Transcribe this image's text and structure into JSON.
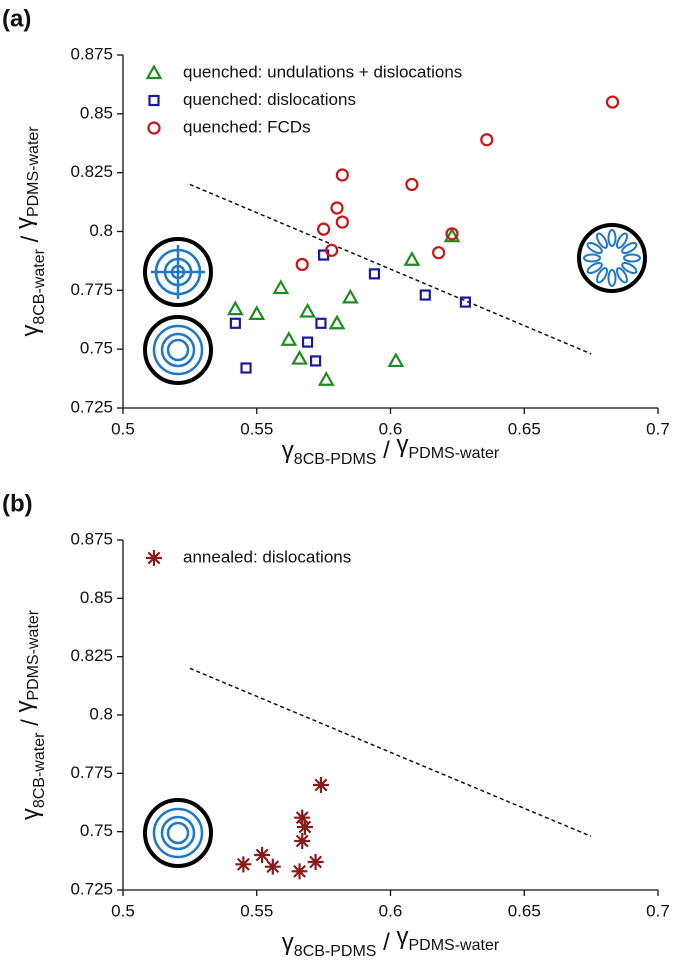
{
  "chart_data": [
    {
      "type": "scatter",
      "panel_label": "(a)",
      "xlabel": [
        "γ",
        "8CB-PDMS",
        " / ",
        "γ",
        "PDMS-water"
      ],
      "ylabel": [
        "γ",
        "8CB-water",
        " / ",
        "γ",
        "PDMS-water"
      ],
      "xlim": [
        0.5,
        0.7
      ],
      "xticks": [
        0.5,
        0.55,
        0.6,
        0.65,
        0.7
      ],
      "ylim": [
        0.725,
        0.875
      ],
      "yticks": [
        0.725,
        0.75,
        0.775,
        0.8,
        0.825,
        0.85,
        0.875
      ],
      "series": [
        {
          "name": "quenched: undulations + dislocations",
          "color": "#1f8c1f",
          "marker": "triangle",
          "x": [
            0.542,
            0.55,
            0.559,
            0.562,
            0.566,
            0.569,
            0.576,
            0.58,
            0.585,
            0.602,
            0.608,
            0.623
          ],
          "values": [
            0.767,
            0.765,
            0.776,
            0.754,
            0.746,
            0.766,
            0.737,
            0.761,
            0.772,
            0.745,
            0.788,
            0.798
          ]
        },
        {
          "name": "quenched: dislocations",
          "color": "#1a1aa0",
          "marker": "square",
          "x": [
            0.542,
            0.546,
            0.569,
            0.572,
            0.574,
            0.575,
            0.594,
            0.613,
            0.628
          ],
          "values": [
            0.761,
            0.742,
            0.753,
            0.745,
            0.761,
            0.79,
            0.782,
            0.773,
            0.77
          ]
        },
        {
          "name": "quenched: FCDs",
          "color": "#cc1414",
          "marker": "circle",
          "x": [
            0.567,
            0.575,
            0.578,
            0.58,
            0.582,
            0.582,
            0.608,
            0.618,
            0.623,
            0.636,
            0.683
          ],
          "values": [
            0.786,
            0.801,
            0.792,
            0.81,
            0.804,
            0.824,
            0.82,
            0.791,
            0.799,
            0.839,
            0.855
          ]
        }
      ],
      "reference_line": {
        "x": [
          0.525,
          0.675
        ],
        "y": [
          0.82,
          0.748
        ]
      }
    },
    {
      "type": "scatter",
      "panel_label": "(b)",
      "xlabel": [
        "γ",
        "8CB-PDMS",
        " / ",
        "γ",
        "PDMS-water"
      ],
      "ylabel": [
        "γ",
        "8CB-water",
        " / ",
        "γ",
        "PDMS-water"
      ],
      "xlim": [
        0.5,
        0.7
      ],
      "xticks": [
        0.5,
        0.55,
        0.6,
        0.65,
        0.7
      ],
      "ylim": [
        0.725,
        0.875
      ],
      "yticks": [
        0.725,
        0.75,
        0.775,
        0.8,
        0.825,
        0.85,
        0.875
      ],
      "series": [
        {
          "name": "annealed: dislocations",
          "color": "#8b1a1a",
          "marker": "asterisk",
          "x": [
            0.545,
            0.552,
            0.556,
            0.566,
            0.567,
            0.568,
            0.567,
            0.572,
            0.574
          ],
          "values": [
            0.736,
            0.74,
            0.735,
            0.733,
            0.756,
            0.752,
            0.746,
            0.737,
            0.77
          ]
        }
      ],
      "reference_line": {
        "x": [
          0.525,
          0.675
        ],
        "y": [
          0.82,
          0.748
        ]
      }
    }
  ]
}
